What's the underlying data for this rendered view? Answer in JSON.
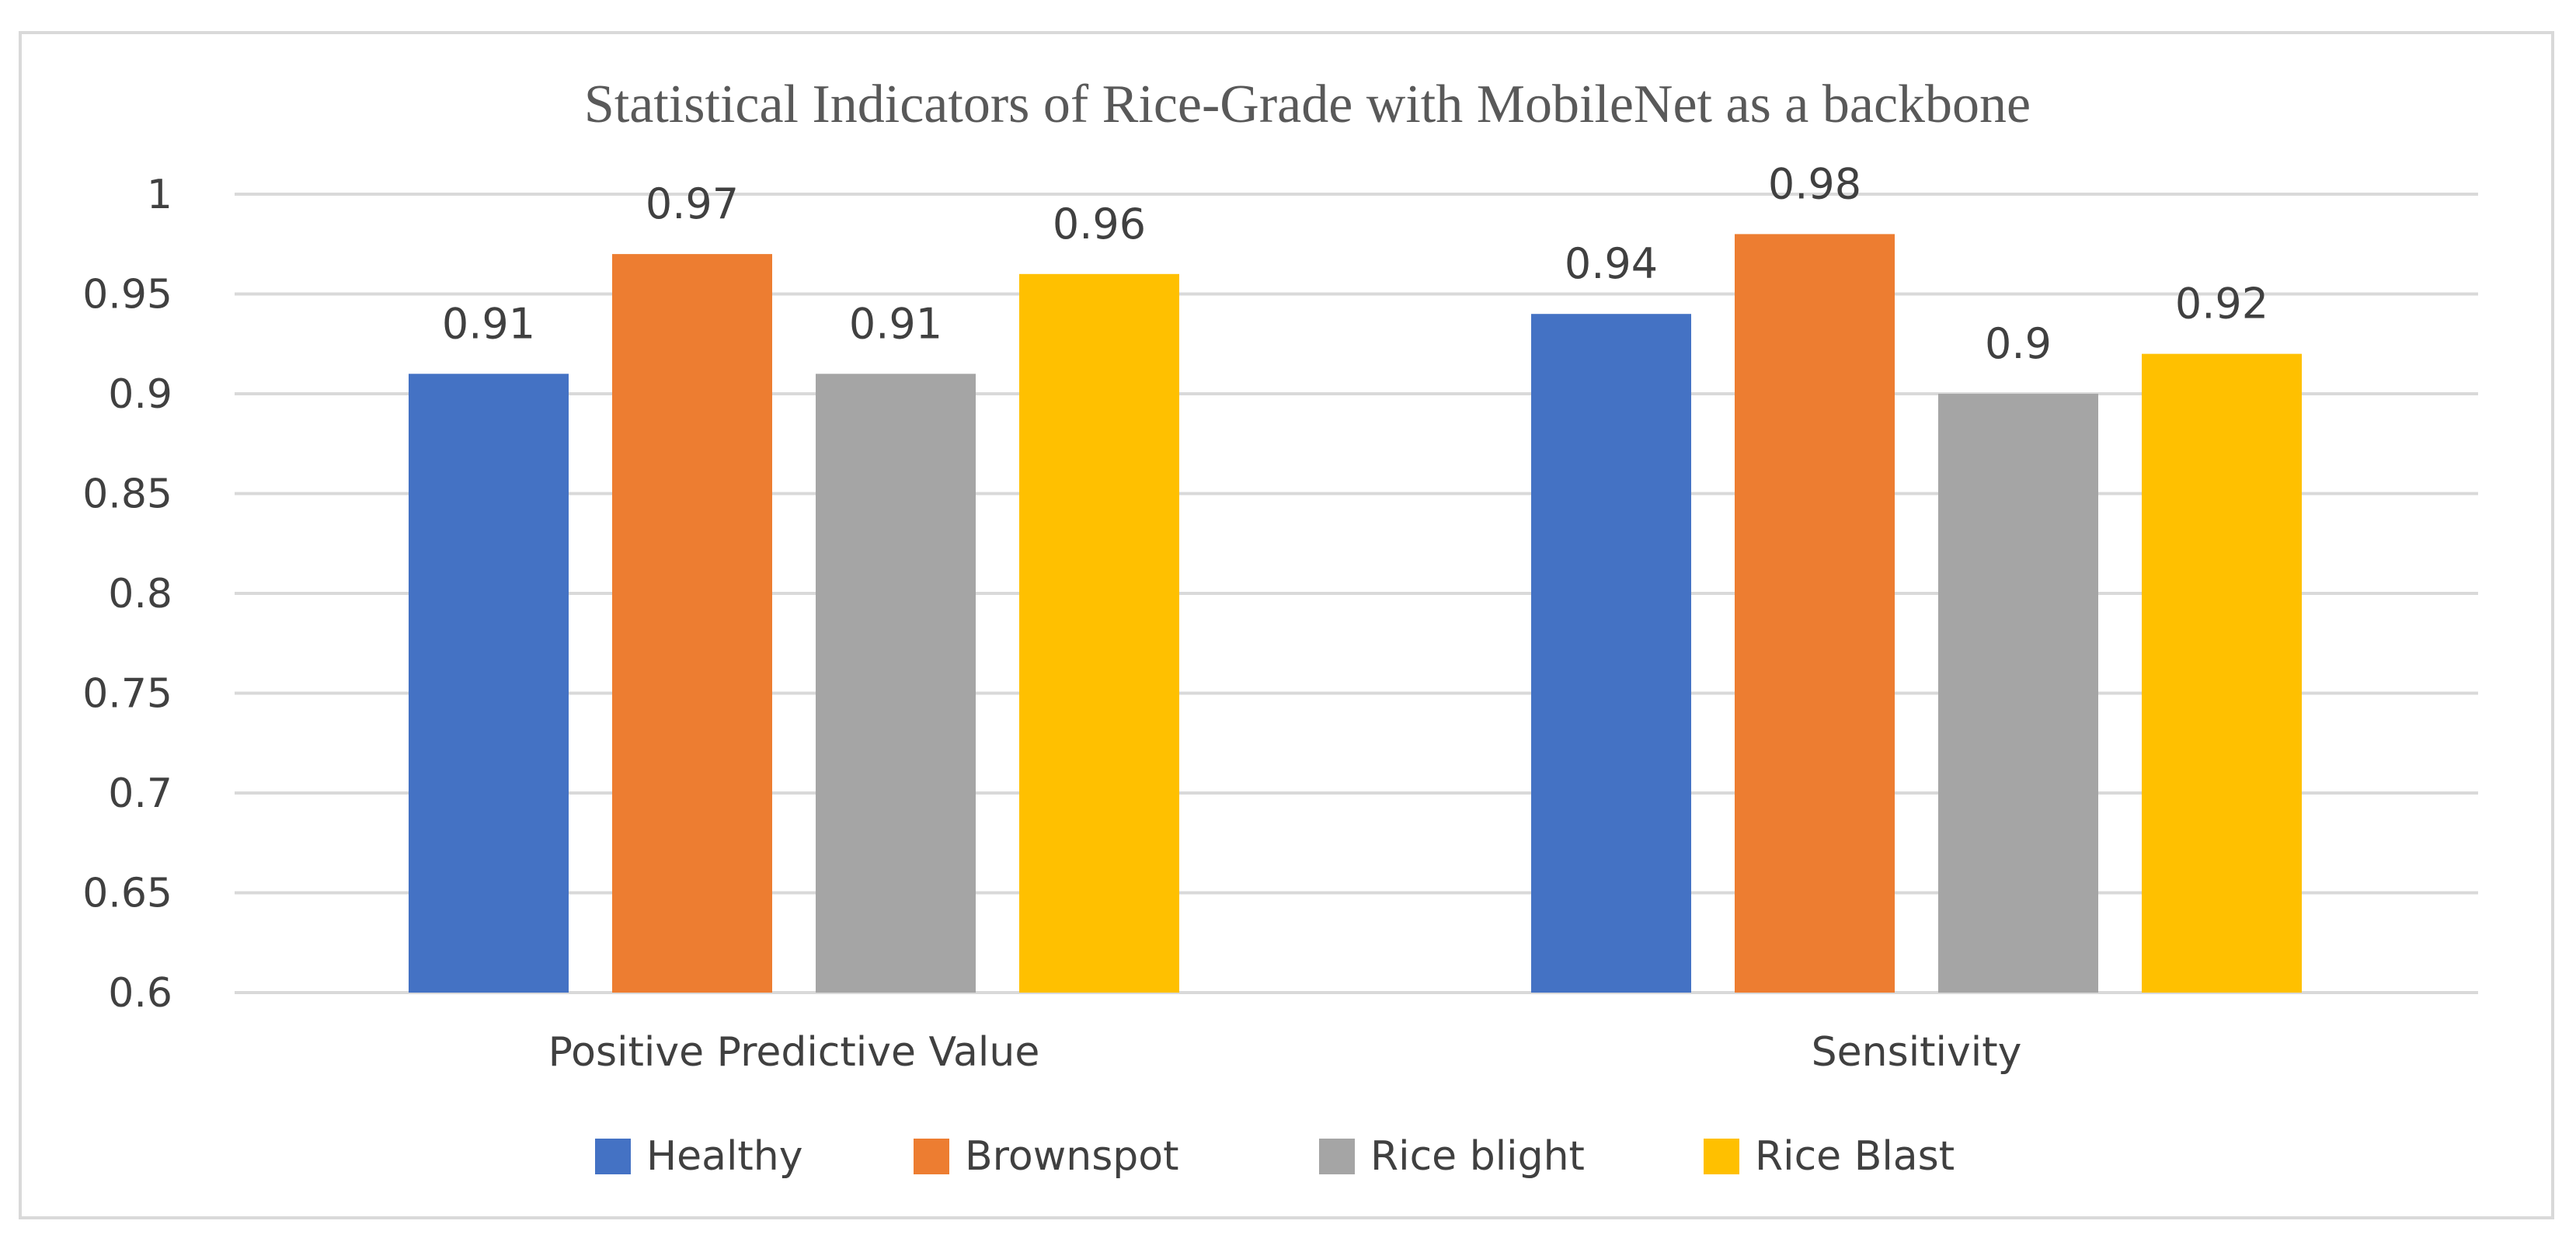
{
  "chart_data": {
    "type": "bar",
    "title": "Statistical Indicators of Rice-Grade with MobileNet as a backbone",
    "xlabel": "",
    "ylabel": "",
    "categories": [
      "Positive Predictive Value",
      "Sensitivity"
    ],
    "series": [
      {
        "name": "Healthy",
        "color": "#4472C4",
        "values": [
          0.91,
          0.94
        ],
        "labels": [
          "0.91",
          "0.94"
        ]
      },
      {
        "name": "Brownspot",
        "color": "#ED7D31",
        "values": [
          0.97,
          0.98
        ],
        "labels": [
          "0.97",
          "0.98"
        ]
      },
      {
        "name": "Rice blight",
        "color": "#A5A5A5",
        "values": [
          0.91,
          0.9
        ],
        "labels": [
          "0.91",
          "0.9"
        ]
      },
      {
        "name": "Rice Blast",
        "color": "#FFC000",
        "values": [
          0.96,
          0.92
        ],
        "labels": [
          "0.96",
          "0.92"
        ]
      }
    ],
    "ylim": [
      0.6,
      1
    ],
    "yticks": [
      "0.6",
      "0.65",
      "0.7",
      "0.75",
      "0.8",
      "0.85",
      "0.9",
      "0.95",
      "1"
    ],
    "grid": true,
    "legend": "bottom"
  }
}
